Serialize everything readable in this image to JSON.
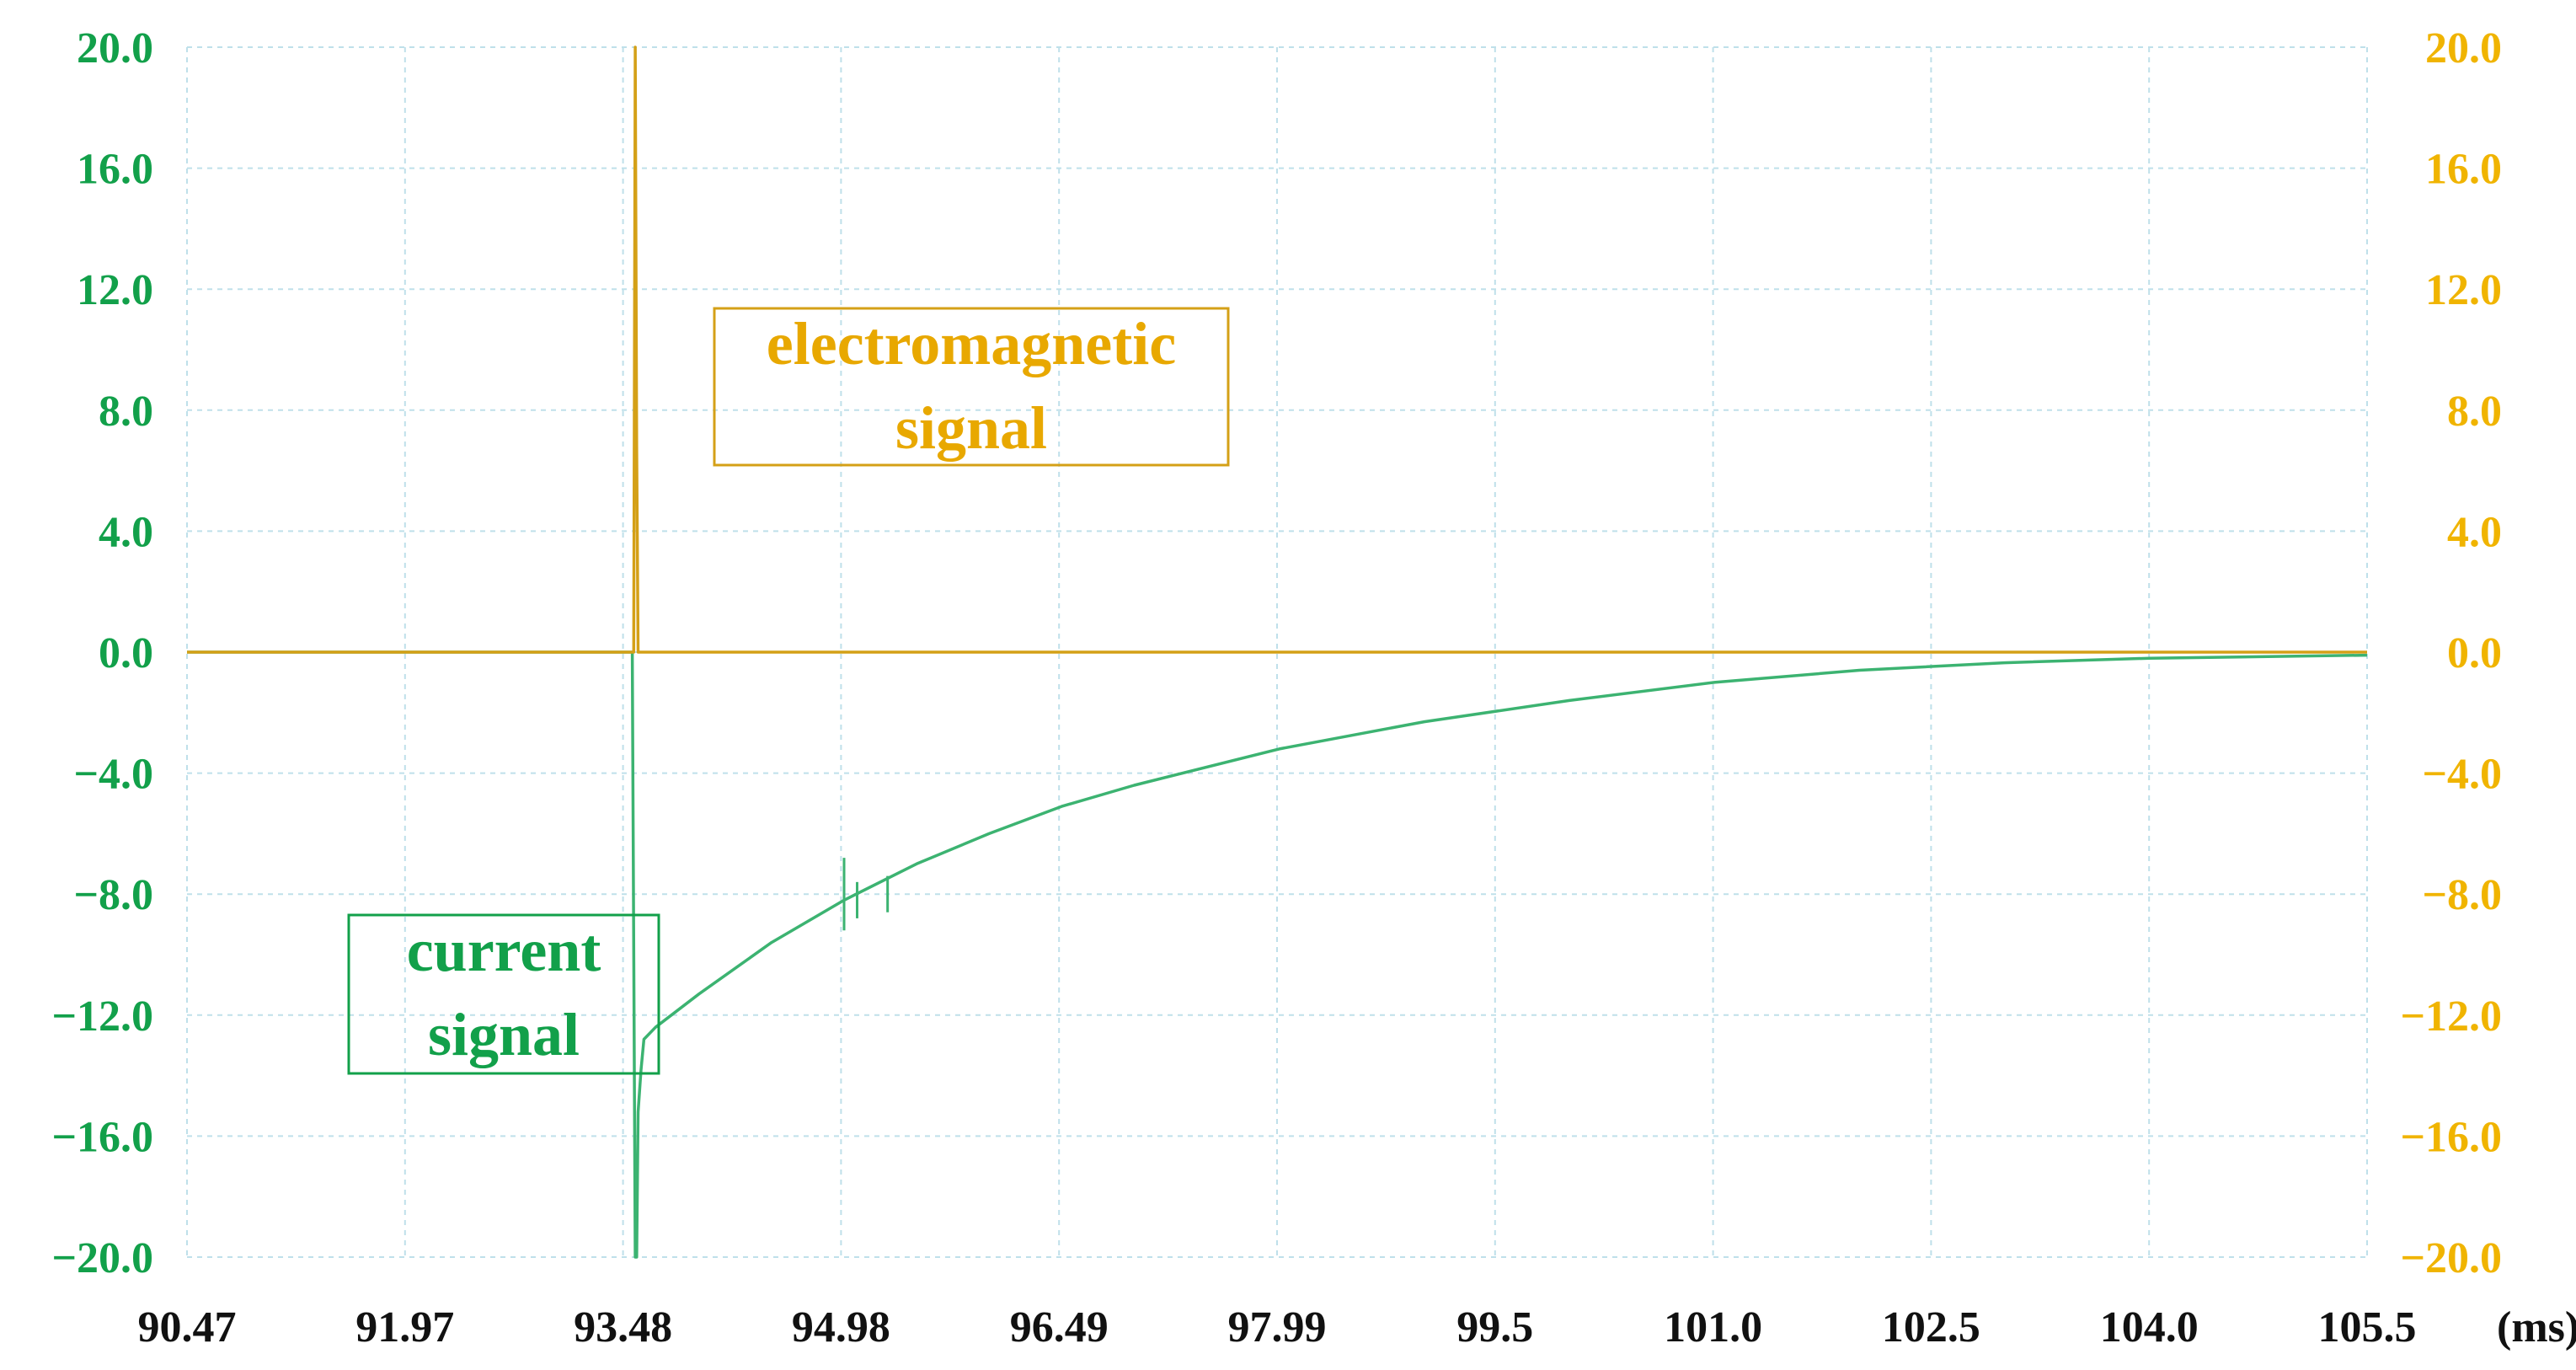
{
  "chart_data": {
    "type": "line",
    "x_unit": "(ms)",
    "x_ticks": [
      "90.47",
      "91.97",
      "93.48",
      "94.98",
      "96.49",
      "97.99",
      "99.5",
      "101.0",
      "102.5",
      "104.0",
      "105.5"
    ],
    "xlim": [
      90.47,
      105.5
    ],
    "left_y_ticks": [
      "20.0",
      "16.0",
      "12.0",
      "8.0",
      "4.0",
      "0.0",
      "−4.0",
      "−8.0",
      "−12.0",
      "−16.0",
      "−20.0"
    ],
    "right_y_ticks": [
      "20.0",
      "16.0",
      "12.0",
      "8.0",
      "4.0",
      "0.0",
      "−4.0",
      "−8.0",
      "−12.0",
      "−16.0",
      "−20.0"
    ],
    "ylim": [
      -20,
      20
    ],
    "grid": true,
    "annotations": [
      {
        "lines": [
          "electromagnetic",
          "signal"
        ],
        "color": "#e8a800"
      },
      {
        "lines": [
          "current",
          "signal"
        ],
        "color": "#12a04a"
      }
    ],
    "series": [
      {
        "color": "#d4a017",
        "x": [
          90.47,
          93.2,
          93.5,
          93.55,
          93.56,
          93.57,
          93.58,
          93.6,
          93.7,
          94.5,
          96.0,
          98.0,
          100.0,
          102.0,
          104.0,
          105.5
        ],
        "y": [
          0.0,
          0.0,
          0.0,
          0.0,
          20.0,
          6.8,
          0.0,
          0.0,
          0.0,
          0.0,
          0.0,
          0.0,
          0.0,
          0.0,
          0.0,
          0.0
        ]
      },
      {
        "color": "#3cb371",
        "x": [
          90.47,
          93.0,
          93.54,
          93.56,
          93.57,
          93.58,
          93.6,
          93.62,
          93.7,
          94.0,
          94.5,
          95.0,
          95.5,
          96.0,
          96.5,
          97.0,
          98.0,
          99.0,
          100.0,
          101.0,
          102.0,
          103.0,
          104.0,
          105.5
        ],
        "y": [
          0.0,
          0.0,
          0.0,
          -20.0,
          -20.0,
          -15.2,
          -13.8,
          -12.8,
          -12.4,
          -11.3,
          -9.6,
          -8.2,
          -7.0,
          -6.0,
          -5.1,
          -4.4,
          -3.2,
          -2.3,
          -1.6,
          -1.0,
          -0.6,
          -0.35,
          -0.2,
          -0.1
        ]
      }
    ],
    "glitches": [
      {
        "x": 95.0,
        "y1": -6.8,
        "y2": -9.2
      },
      {
        "x": 95.09,
        "y1": -7.6,
        "y2": -8.8
      },
      {
        "x": 95.3,
        "y1": -7.4,
        "y2": -8.6
      }
    ]
  }
}
